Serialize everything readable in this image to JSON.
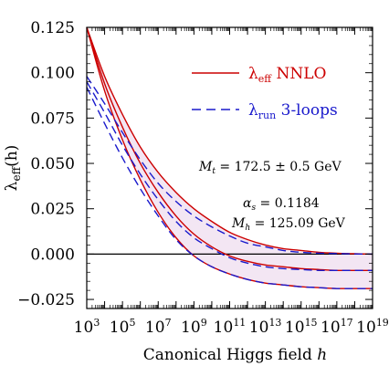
{
  "chart_data": {
    "type": "line",
    "xlabel": "Canonical Higgs field  h",
    "ylabel": "λeff(h)",
    "x_scale": "log10",
    "x_range_log10": [
      3,
      19
    ],
    "ylim": [
      -0.03,
      0.125
    ],
    "x_ticks": [
      {
        "exp": 3,
        "text": "10",
        "sup": "3"
      },
      {
        "exp": 5,
        "text": "10",
        "sup": "5"
      },
      {
        "exp": 7,
        "text": "10",
        "sup": "7"
      },
      {
        "exp": 9,
        "text": "10",
        "sup": "9"
      },
      {
        "exp": 11,
        "text": "10",
        "sup": "11"
      },
      {
        "exp": 13,
        "text": "10",
        "sup": "13"
      },
      {
        "exp": 15,
        "text": "10",
        "sup": "15"
      },
      {
        "exp": 17,
        "text": "10",
        "sup": "17"
      },
      {
        "exp": 19,
        "text": "10",
        "sup": "19"
      }
    ],
    "y_ticks": [
      {
        "value": 0.125,
        "label": "0.125"
      },
      {
        "value": 0.1,
        "label": "0.100"
      },
      {
        "value": 0.075,
        "label": "0.075"
      },
      {
        "value": 0.05,
        "label": "0.050"
      },
      {
        "value": 0.025,
        "label": "0.025"
      },
      {
        "value": 0.0,
        "label": "0.000"
      },
      {
        "value": -0.025,
        "label": "−0.025"
      }
    ],
    "legend": [
      {
        "text": "λeff NNLO",
        "color": "#cc0000",
        "style": "solid"
      },
      {
        "text": "λrun 3-loops",
        "color": "#1a1acc",
        "style": "dashed"
      }
    ],
    "annotations": [
      "Mt = 172.5 ± 0.5 GeV",
      "αs = 0.1184",
      "Mh = 125.09 GeV"
    ],
    "band_color": "#f3e6f3",
    "series": [
      {
        "group": "eff",
        "color": "#cc0000",
        "style": "solid",
        "x_log10": [
          3,
          4,
          5,
          6,
          7,
          8,
          9,
          10,
          11,
          12,
          13,
          14,
          15,
          16,
          17,
          18,
          19
        ],
        "values": [
          0.125,
          0.098,
          0.077,
          0.059,
          0.045,
          0.034,
          0.025,
          0.018,
          0.012,
          0.008,
          0.005,
          0.003,
          0.002,
          0.001,
          0.0005,
          0.0002,
          0.0
        ]
      },
      {
        "group": "eff",
        "color": "#cc0000",
        "style": "solid",
        "x_log10": [
          3,
          4,
          5,
          6,
          7,
          8,
          9,
          10,
          11,
          12,
          13,
          14,
          15,
          16,
          17,
          18,
          19
        ],
        "values": [
          0.125,
          0.094,
          0.07,
          0.05,
          0.034,
          0.021,
          0.011,
          0.004,
          -0.001,
          -0.004,
          -0.006,
          -0.007,
          -0.008,
          -0.0085,
          -0.009,
          -0.009,
          -0.009
        ]
      },
      {
        "group": "eff",
        "color": "#cc0000",
        "style": "solid",
        "x_log10": [
          3,
          4,
          5,
          6,
          7,
          8,
          9,
          10,
          11,
          12,
          13,
          14,
          15,
          16,
          17,
          18,
          19
        ],
        "values": [
          0.125,
          0.09,
          0.063,
          0.041,
          0.023,
          0.009,
          -0.001,
          -0.007,
          -0.011,
          -0.014,
          -0.016,
          -0.017,
          -0.018,
          -0.0185,
          -0.019,
          -0.019,
          -0.019
        ]
      },
      {
        "group": "run",
        "color": "#1a1acc",
        "style": "dashed",
        "x_log10": [
          3,
          4,
          5,
          6,
          7,
          8,
          9,
          10,
          11,
          12,
          13,
          14,
          15,
          16,
          17,
          18,
          19
        ],
        "values": [
          0.098,
          0.083,
          0.067,
          0.052,
          0.039,
          0.029,
          0.021,
          0.015,
          0.01,
          0.006,
          0.004,
          0.002,
          0.001,
          0.0005,
          0.0003,
          0.0001,
          0.0
        ]
      },
      {
        "group": "run",
        "color": "#1a1acc",
        "style": "dashed",
        "x_log10": [
          3,
          4,
          5,
          6,
          7,
          8,
          9,
          10,
          11,
          12,
          13,
          14,
          15,
          16,
          17,
          18,
          19
        ],
        "values": [
          0.095,
          0.078,
          0.06,
          0.044,
          0.03,
          0.018,
          0.009,
          0.003,
          -0.002,
          -0.005,
          -0.007,
          -0.008,
          -0.0085,
          -0.009,
          -0.009,
          -0.009,
          -0.009
        ]
      },
      {
        "group": "run",
        "color": "#1a1acc",
        "style": "dashed",
        "x_log10": [
          3,
          4,
          5,
          6,
          7,
          8,
          9,
          10,
          11,
          12,
          13,
          14,
          15,
          16,
          17,
          18,
          19
        ],
        "values": [
          0.092,
          0.072,
          0.053,
          0.036,
          0.021,
          0.008,
          -0.001,
          -0.007,
          -0.011,
          -0.014,
          -0.016,
          -0.017,
          -0.018,
          -0.0185,
          -0.019,
          -0.019,
          -0.019
        ]
      }
    ]
  }
}
